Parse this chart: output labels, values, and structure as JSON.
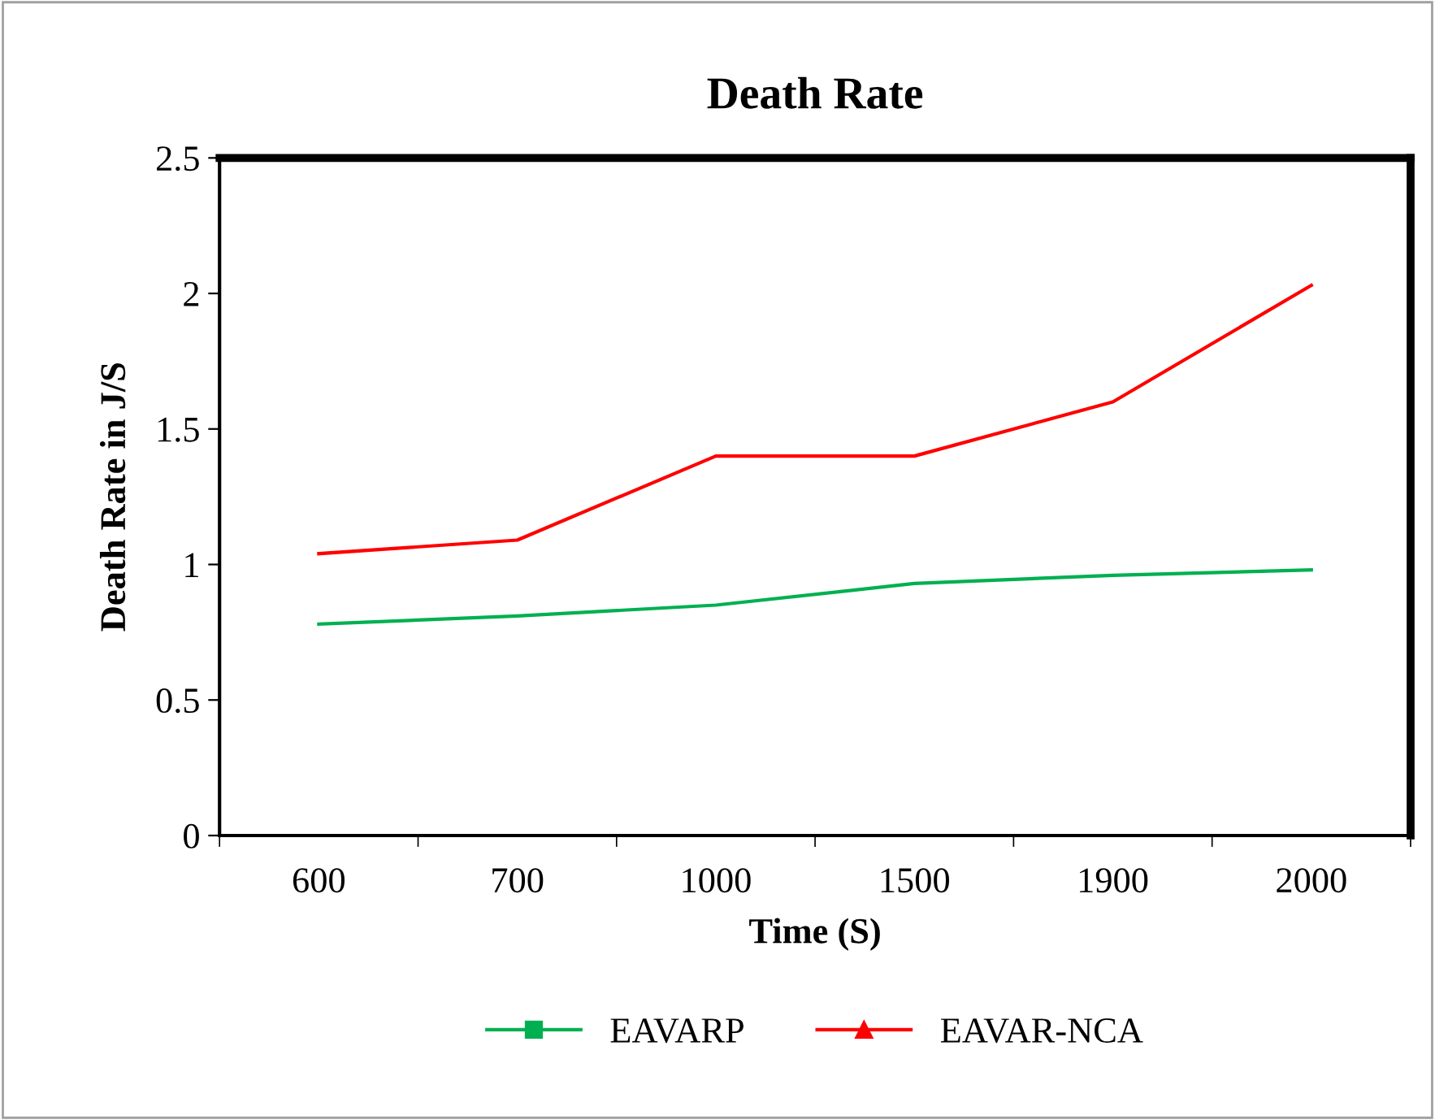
{
  "chart_data": {
    "type": "line",
    "title": "Death Rate",
    "xlabel": "Time (S)",
    "ylabel": "Death Rate in J/S",
    "categories": [
      "600",
      "700",
      "1000",
      "1500",
      "1900",
      "2000"
    ],
    "series": [
      {
        "name": "EAVARP",
        "color": "#00b050",
        "values": [
          0.78,
          0.81,
          0.85,
          0.93,
          0.96,
          0.98
        ]
      },
      {
        "name": "EAVAR-NCA",
        "color": "#ff0000",
        "values": [
          1.04,
          1.09,
          1.4,
          1.4,
          1.6,
          2.03
        ]
      }
    ],
    "ylim": [
      0,
      2.5
    ],
    "yticks": [
      0,
      0.5,
      1,
      1.5,
      2,
      2.5
    ],
    "grid": false,
    "legend": "bottom",
    "line_style": "solid"
  }
}
